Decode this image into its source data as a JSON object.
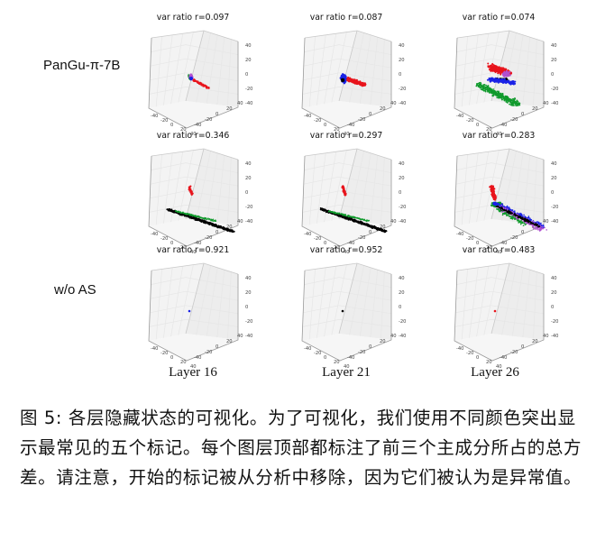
{
  "chart_data": {
    "type": "scatter",
    "layers": [
      "Layer 16",
      "Layer 21",
      "Layer 26"
    ],
    "rows": [
      {
        "label": "PanGu-π-7B",
        "variant": "baseline",
        "panels": [
          {
            "layer": "Layer 16",
            "title": "var ratio r=0.097",
            "var_ratio": 0.097
          },
          {
            "layer": "Layer 21",
            "title": "var ratio r=0.087",
            "var_ratio": 0.087
          },
          {
            "layer": "Layer 26",
            "title": "var ratio r=0.074",
            "var_ratio": 0.074
          }
        ]
      },
      {
        "label": "",
        "variant": "middle",
        "panels": [
          {
            "layer": "Layer 16",
            "title": "var ratio r=0.346",
            "var_ratio": 0.346
          },
          {
            "layer": "Layer 21",
            "title": "var ratio r=0.297",
            "var_ratio": 0.297
          },
          {
            "layer": "Layer 26",
            "title": "var ratio r=0.283",
            "var_ratio": 0.283
          }
        ]
      },
      {
        "label": "w/o AS",
        "variant": "without-AS",
        "panels": [
          {
            "layer": "Layer 16",
            "title": "var ratio r=0.921",
            "var_ratio": 0.921
          },
          {
            "layer": "Layer 21",
            "title": "var ratio r=0.952",
            "var_ratio": 0.952
          },
          {
            "layer": "Layer 26",
            "title": "var ratio r=0.483",
            "var_ratio": 0.483
          }
        ]
      }
    ],
    "axes": {
      "x_ticks": [
        "-40",
        "-20",
        "0",
        "20",
        "40"
      ],
      "y_ticks": [
        "-40",
        "-20",
        "0",
        "20",
        "40"
      ],
      "z_ticks": [
        "40",
        "20",
        "0",
        "-20",
        "-40"
      ],
      "xlim": [
        -40,
        40
      ],
      "ylim": [
        -40,
        40
      ],
      "zlim": [
        -40,
        40
      ],
      "grid": true
    },
    "point_colors": [
      "#e8141c",
      "#1a22e6",
      "#109a2c",
      "#000000",
      "#b050d0"
    ]
  },
  "caption": "图 5: 各层隐藏状态的可视化。为了可视化，我们使用不同颜色突出显示最常见的五个标记。每个图层顶部都标注了前三个主成分所占的总方差。请注意，开始的标记被从分析中移除，因为它们被认为是异常值。"
}
